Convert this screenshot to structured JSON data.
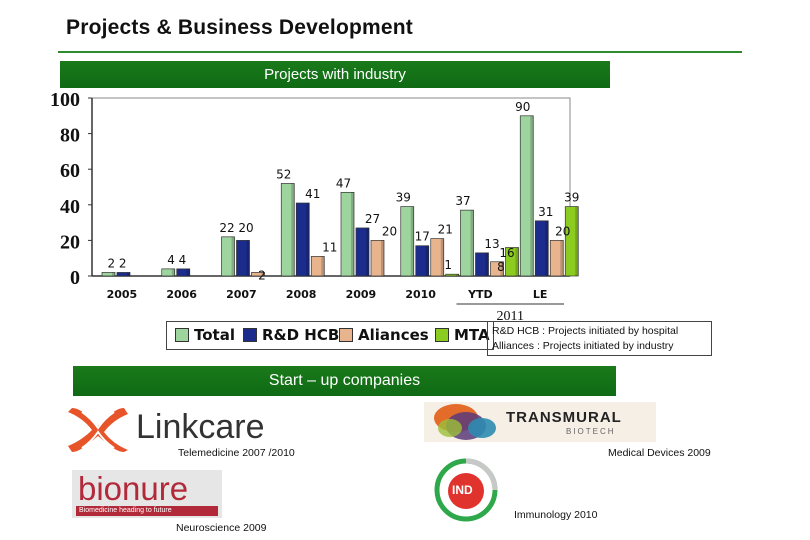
{
  "page": {
    "title": "Projects & Business Development",
    "banner1": "Projects  with industry",
    "banner2": "Start – up companies"
  },
  "chart_data": {
    "type": "bar",
    "categories": [
      "2005",
      "2006",
      "2007",
      "2008",
      "2009",
      "2010",
      "YTD",
      "LE"
    ],
    "group_label": "2011",
    "ylim": [
      0,
      100
    ],
    "yticks": [
      "0",
      "20",
      "40",
      "60",
      "80",
      "100"
    ],
    "series": [
      {
        "name": "Total",
        "values": [
          2,
          4,
          22,
          52,
          47,
          39,
          37,
          90
        ],
        "color": "#9ed49e"
      },
      {
        "name": "R&D HCB",
        "values": [
          2,
          4,
          20,
          41,
          27,
          17,
          13,
          31
        ],
        "color": "#1c2c8c"
      },
      {
        "name": "Aliances",
        "values": [
          null,
          null,
          2,
          11,
          20,
          21,
          8,
          20
        ],
        "color": "#e8b48e"
      },
      {
        "name": "MTA",
        "values": [
          null,
          null,
          null,
          null,
          null,
          1,
          16,
          39
        ],
        "color": "#8ccc20"
      }
    ],
    "labels": [
      {
        "cat": 0,
        "text": "2 2"
      },
      {
        "cat": 1,
        "text": "4 4"
      },
      {
        "cat": 2,
        "text": "22 20"
      },
      {
        "cat": 2,
        "text": "2"
      },
      {
        "cat": 3,
        "text": "52"
      },
      {
        "cat": 3,
        "text": "41"
      },
      {
        "cat": 3,
        "text": "11"
      },
      {
        "cat": 4,
        "text": "47"
      },
      {
        "cat": 4,
        "text": "27"
      },
      {
        "cat": 4,
        "text": "20"
      },
      {
        "cat": 5,
        "text": "39"
      },
      {
        "cat": 5,
        "text": "17"
      },
      {
        "cat": 5,
        "text": "21"
      },
      {
        "cat": 5,
        "text": "1"
      },
      {
        "cat": 6,
        "text": "37"
      },
      {
        "cat": 6,
        "text": "13"
      },
      {
        "cat": 6,
        "text": "16"
      },
      {
        "cat": 6,
        "text": "8"
      },
      {
        "cat": 7,
        "text": "90"
      },
      {
        "cat": 7,
        "text": "31"
      },
      {
        "cat": 7,
        "text": "39"
      },
      {
        "cat": 7,
        "text": "20"
      }
    ]
  },
  "legend": [
    "Total",
    "R&D HCB",
    "Aliances",
    "MTA"
  ],
  "notes": {
    "line1": "R&D HCB : Projects initiated by hospital",
    "line2": "Alliances   : Projects initiated by industry"
  },
  "companies": [
    {
      "name": "Linkcare",
      "caption": "Telemedicine 2007 /2010"
    },
    {
      "name": "TRANSMURAL",
      "sub": "BIOTECH",
      "caption": "Medical Devices 2009"
    },
    {
      "name": "bionure",
      "sub": "Biomedicine heading to future",
      "caption": "Neuroscience 2009"
    },
    {
      "name": "IND",
      "caption": "Immunology 2010"
    }
  ]
}
